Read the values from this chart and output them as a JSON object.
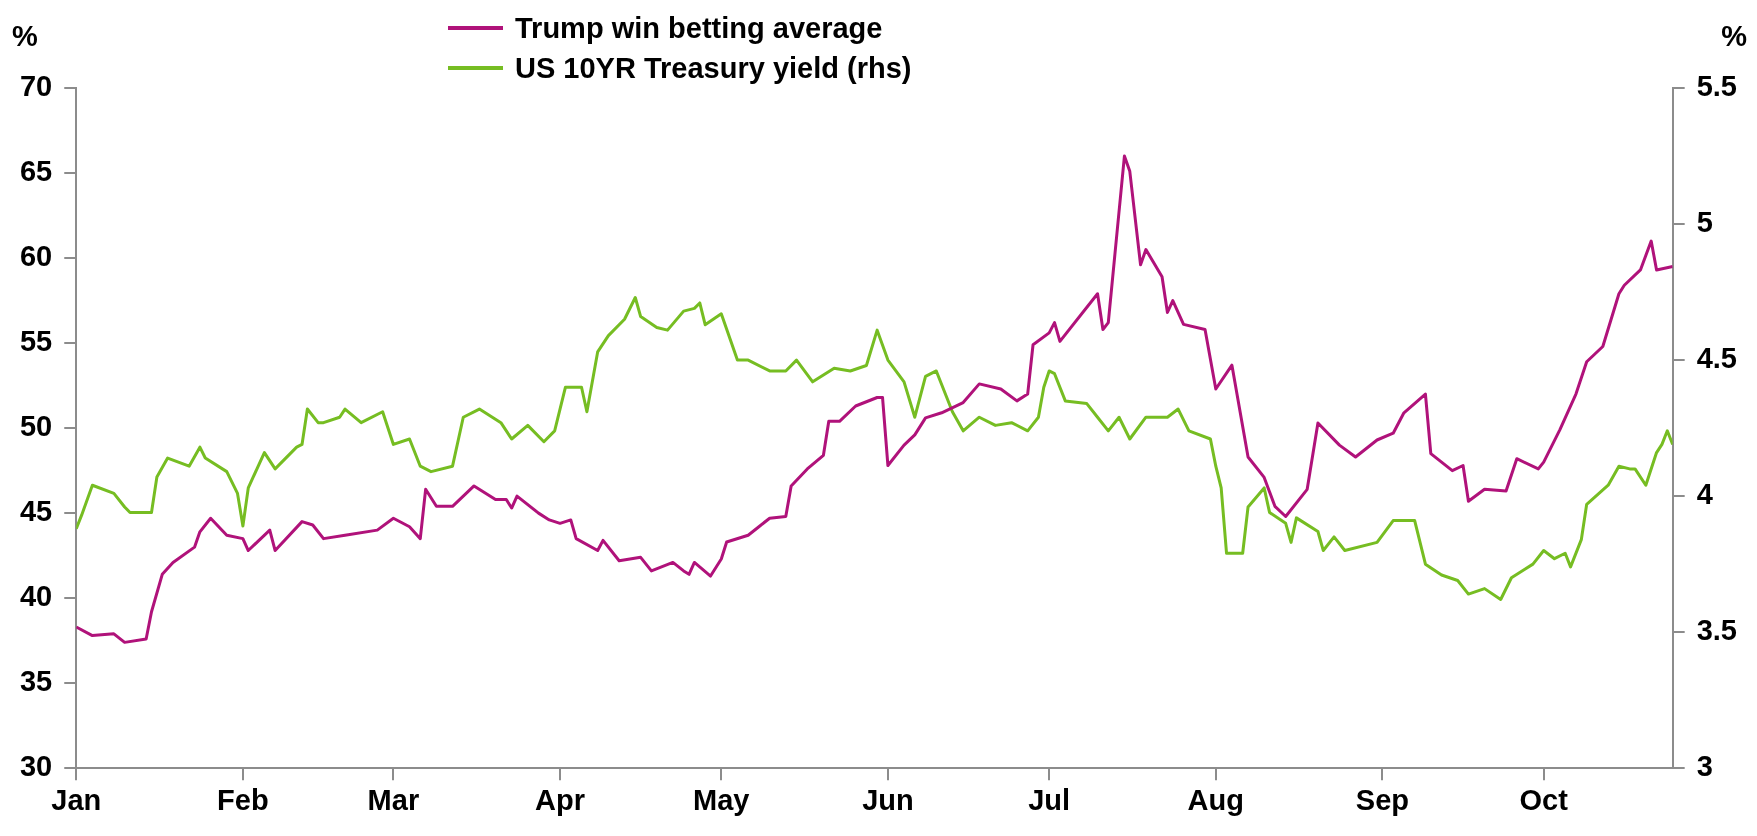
{
  "chart_data": {
    "type": "line",
    "ylabel": "%",
    "y2label": "%",
    "legend": "top",
    "grid": false,
    "marker": "none",
    "line_style": "solid",
    "xlim": [
      "--01-01",
      "--10-25"
    ],
    "xticks": [
      {
        "value": "--01-01",
        "label": "Jan"
      },
      {
        "value": "--02-01",
        "label": "Feb"
      },
      {
        "value": "--03-01",
        "label": "Mar"
      },
      {
        "value": "--04-01",
        "label": "Apr"
      },
      {
        "value": "--05-01",
        "label": "May"
      },
      {
        "value": "--06-01",
        "label": "Jun"
      },
      {
        "value": "--07-01",
        "label": "Jul"
      },
      {
        "value": "--08-01",
        "label": "Aug"
      },
      {
        "value": "--09-01",
        "label": "Sep"
      },
      {
        "value": "--10-01",
        "label": "Oct"
      }
    ],
    "ylim": [
      30,
      70
    ],
    "yticks": [
      30,
      35,
      40,
      45,
      50,
      55,
      60,
      65,
      70
    ],
    "y2lim": [
      3,
      5.5
    ],
    "y2ticks": [
      3,
      3.5,
      4,
      4.5,
      5,
      5.5
    ],
    "series": [
      {
        "name": "Trump win betting average",
        "color": "#b0127a",
        "x": [
          "--01-01",
          "--01-04",
          "--01-08",
          "--01-10",
          "--01-14",
          "--01-15",
          "--01-17",
          "--01-19",
          "--01-23",
          "--01-24",
          "--01-26",
          "--01-29",
          "--02-01",
          "--02-02",
          "--02-06",
          "--02-07",
          "--02-12",
          "--02-14",
          "--02-16",
          "--02-20",
          "--02-26",
          "--03-01",
          "--03-04",
          "--03-06",
          "--03-07",
          "--03-09",
          "--03-12",
          "--03-16",
          "--03-20",
          "--03-22",
          "--03-23",
          "--03-24",
          "--03-28",
          "--03-30",
          "--04-01",
          "--04-03",
          "--04-04",
          "--04-08",
          "--04-09",
          "--04-12",
          "--04-16",
          "--04-18",
          "--04-22",
          "--04-24",
          "--04-25",
          "--04-26",
          "--04-29",
          "--05-01",
          "--05-02",
          "--05-06",
          "--05-08",
          "--05-10",
          "--05-13",
          "--05-14",
          "--05-17",
          "--05-20",
          "--05-21",
          "--05-23",
          "--05-26",
          "--05-30",
          "--05-31",
          "--06-01",
          "--06-04",
          "--06-06",
          "--06-08",
          "--06-11",
          "--06-15",
          "--06-18",
          "--06-22",
          "--06-25",
          "--06-27",
          "--06-28",
          "--07-01",
          "--07-02",
          "--07-03",
          "--07-10",
          "--07-11",
          "--07-12",
          "--07-15",
          "--07-16",
          "--07-18",
          "--07-19",
          "--07-22",
          "--07-23",
          "--07-24",
          "--07-26",
          "--07-30",
          "--08-01",
          "--08-04",
          "--08-07",
          "--08-10",
          "--08-12",
          "--08-14",
          "--08-18",
          "--08-20",
          "--08-24",
          "--08-27",
          "--08-31",
          "--09-03",
          "--09-05",
          "--09-09",
          "--09-10",
          "--09-14",
          "--09-16",
          "--09-17",
          "--09-20",
          "--09-24",
          "--09-26",
          "--09-30",
          "--10-01",
          "--10-04",
          "--10-07",
          "--10-09",
          "--10-12",
          "--10-15",
          "--10-16",
          "--10-19",
          "--10-21",
          "--10-22",
          "--10-25"
        ],
        "values": [
          38.3,
          37.8,
          37.9,
          37.4,
          37.6,
          39.2,
          41.4,
          42.1,
          43,
          43.9,
          44.7,
          43.7,
          43.5,
          42.8,
          44,
          42.8,
          44.5,
          44.3,
          43.5,
          43.7,
          44,
          44.7,
          44.2,
          43.5,
          46.4,
          45.4,
          45.4,
          46.6,
          45.8,
          45.8,
          45.3,
          46,
          45,
          44.6,
          44.4,
          44.6,
          43.5,
          42.8,
          43.4,
          42.2,
          42.4,
          41.6,
          42.1,
          41.6,
          41.4,
          42.1,
          41.3,
          42.3,
          43.3,
          43.7,
          44.2,
          44.7,
          44.8,
          46.6,
          47.6,
          48.4,
          50.4,
          50.4,
          51.3,
          51.8,
          51.8,
          47.8,
          49,
          49.6,
          50.6,
          50.9,
          51.5,
          52.6,
          52.3,
          51.6,
          52,
          54.9,
          55.6,
          56.2,
          55.1,
          57.9,
          55.8,
          56.2,
          66,
          65.1,
          59.6,
          60.5,
          58.9,
          56.8,
          57.5,
          56.1,
          55.8,
          52.3,
          53.7,
          48.3,
          47.1,
          45.4,
          44.8,
          46.4,
          50.3,
          49,
          48.3,
          49.3,
          49.7,
          50.9,
          52,
          48.5,
          47.5,
          47.8,
          45.7,
          46.4,
          46.3,
          48.2,
          47.6,
          48,
          49.9,
          52,
          53.9,
          54.8,
          57.9,
          58.4,
          59.3,
          61,
          59.3,
          59.5
        ]
      },
      {
        "name": "US 10YR Treasury yield (rhs)",
        "color": "#76bd22",
        "axis": "y2",
        "x": [
          "--01-01",
          "--01-02",
          "--01-04",
          "--01-08",
          "--01-10",
          "--01-11",
          "--01-15",
          "--01-16",
          "--01-18",
          "--01-22",
          "--01-24",
          "--01-25",
          "--01-29",
          "--01-31",
          "--02-01",
          "--02-02",
          "--02-05",
          "--02-07",
          "--02-11",
          "--02-12",
          "--02-13",
          "--02-15",
          "--02-16",
          "--02-19",
          "--02-20",
          "--02-23",
          "--02-27",
          "--03-01",
          "--03-04",
          "--03-06",
          "--03-08",
          "--03-12",
          "--03-14",
          "--03-17",
          "--03-21",
          "--03-23",
          "--03-26",
          "--03-29",
          "--03-31",
          "--04-02",
          "--04-05",
          "--04-06",
          "--04-08",
          "--04-10",
          "--04-13",
          "--04-15",
          "--04-16",
          "--04-19",
          "--04-21",
          "--04-24",
          "--04-26",
          "--04-27",
          "--04-28",
          "--05-01",
          "--05-04",
          "--05-06",
          "--05-10",
          "--05-13",
          "--05-15",
          "--05-18",
          "--05-22",
          "--05-25",
          "--05-28",
          "--05-30",
          "--06-01",
          "--06-04",
          "--06-06",
          "--06-08",
          "--06-10",
          "--06-13",
          "--06-15",
          "--06-18",
          "--06-21",
          "--06-24",
          "--06-27",
          "--06-29",
          "--06-30",
          "--07-01",
          "--07-02",
          "--07-04",
          "--07-08",
          "--07-10",
          "--07-12",
          "--07-14",
          "--07-16",
          "--07-19",
          "--07-23",
          "--07-25",
          "--07-27",
          "--07-31",
          "--08-01",
          "--08-02",
          "--08-03",
          "--08-06",
          "--08-07",
          "--08-10",
          "--08-11",
          "--08-14",
          "--08-15",
          "--08-16",
          "--08-20",
          "--08-21",
          "--08-23",
          "--08-25",
          "--08-31",
          "--09-03",
          "--09-07",
          "--09-09",
          "--09-12",
          "--09-15",
          "--09-17",
          "--09-20",
          "--09-23",
          "--09-25",
          "--09-29",
          "--10-01",
          "--10-03",
          "--10-05",
          "--10-06",
          "--10-08",
          "--10-09",
          "--10-13",
          "--10-15",
          "--10-17",
          "--10-18",
          "--10-20",
          "--10-22",
          "--10-23",
          "--10-24",
          "--10-25"
        ],
        "values": [
          3.88,
          3.93,
          4.04,
          4.01,
          3.96,
          3.94,
          3.94,
          4.07,
          4.14,
          4.11,
          4.18,
          4.14,
          4.09,
          4.01,
          3.89,
          4.03,
          4.16,
          4.1,
          4.18,
          4.19,
          4.32,
          4.27,
          4.27,
          4.29,
          4.32,
          4.27,
          4.31,
          4.19,
          4.21,
          4.11,
          4.09,
          4.11,
          4.29,
          4.32,
          4.27,
          4.21,
          4.26,
          4.2,
          4.24,
          4.4,
          4.4,
          4.31,
          4.53,
          4.59,
          4.65,
          4.73,
          4.66,
          4.62,
          4.61,
          4.68,
          4.69,
          4.71,
          4.63,
          4.67,
          4.5,
          4.5,
          4.46,
          4.46,
          4.5,
          4.42,
          4.47,
          4.46,
          4.48,
          4.61,
          4.5,
          4.42,
          4.29,
          4.44,
          4.46,
          4.31,
          4.24,
          4.29,
          4.26,
          4.27,
          4.24,
          4.29,
          4.4,
          4.46,
          4.45,
          4.35,
          4.34,
          4.29,
          4.24,
          4.29,
          4.21,
          4.29,
          4.29,
          4.32,
          4.24,
          4.21,
          4.11,
          4.03,
          3.79,
          3.79,
          3.96,
          4.03,
          3.94,
          3.9,
          3.83,
          3.92,
          3.87,
          3.8,
          3.85,
          3.8,
          3.83,
          3.91,
          3.91,
          3.75,
          3.71,
          3.69,
          3.64,
          3.66,
          3.62,
          3.7,
          3.75,
          3.8,
          3.77,
          3.79,
          3.74,
          3.84,
          3.97,
          4.04,
          4.11,
          4.1,
          4.1,
          4.04,
          4.16,
          4.19,
          4.24,
          4.19
        ]
      }
    ]
  }
}
